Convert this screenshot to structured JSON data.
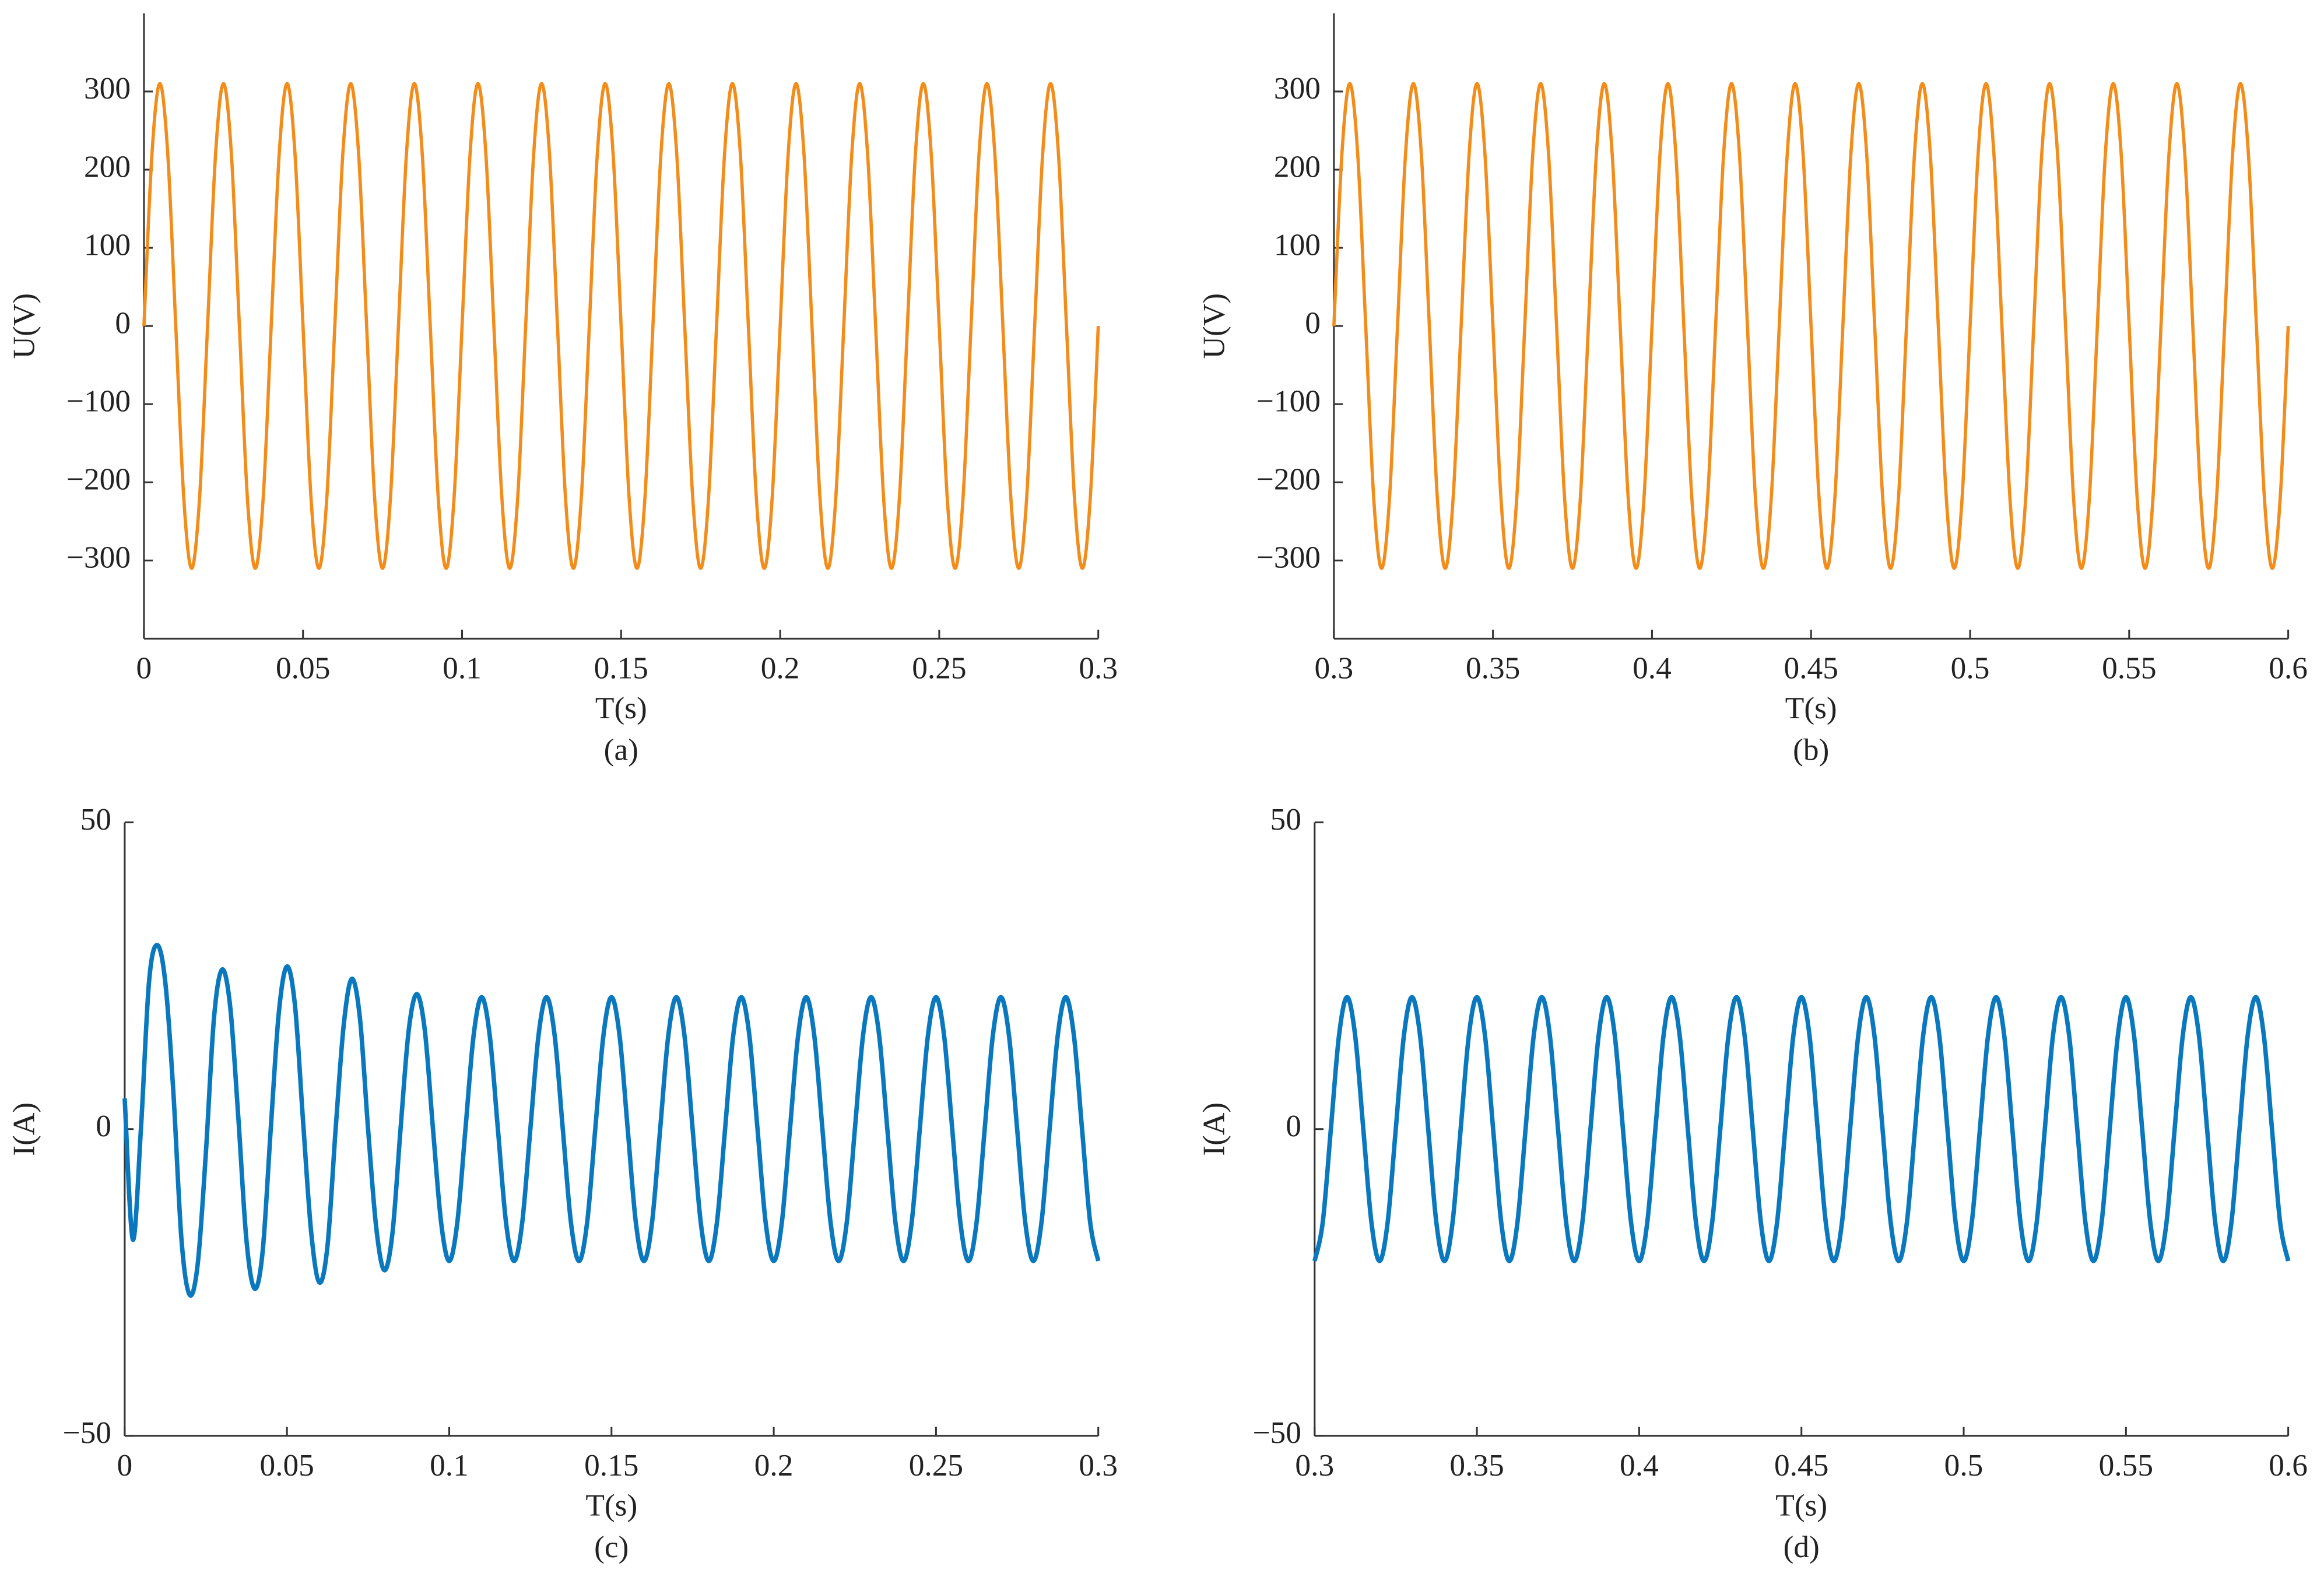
{
  "chart_data": [
    {
      "type": "line",
      "ylabel": "U(V)",
      "xlabel": "T(s)",
      "caption": "(a)",
      "color": "#f28c1a",
      "xlim": [
        0,
        0.3
      ],
      "xticks": [
        0,
        0.05,
        0.1,
        0.15,
        0.2,
        0.25,
        0.3
      ],
      "ylim": [
        -400,
        400
      ],
      "yticks": [
        {
          "value": -300,
          "label": "−300"
        },
        {
          "value": -200,
          "label": "−200"
        },
        {
          "value": -100,
          "label": "−100"
        },
        0,
        100,
        200,
        300
      ],
      "x": [
        0,
        0.0025,
        0.005,
        0.0075,
        0.01,
        0.0125,
        0.015,
        0.0175,
        0.02,
        0.0225,
        0.025,
        0.0275,
        0.03,
        0.0325,
        0.035,
        0.0375,
        0.04,
        0.0425,
        0.045,
        0.0475,
        0.05,
        0.0525,
        0.055,
        0.0575,
        0.06,
        0.0625,
        0.065,
        0.0675,
        0.07,
        0.0725,
        0.075,
        0.0775,
        0.08,
        0.0825,
        0.085,
        0.0875,
        0.09,
        0.0925,
        0.095,
        0.0975,
        0.1,
        0.1025,
        0.105,
        0.1075,
        0.11,
        0.1125,
        0.115,
        0.1175,
        0.12,
        0.1225,
        0.125,
        0.1275,
        0.13,
        0.1325,
        0.135,
        0.1375,
        0.14,
        0.1425,
        0.145,
        0.1475,
        0.15,
        0.1525,
        0.155,
        0.1575,
        0.16,
        0.1625,
        0.165,
        0.1675,
        0.17,
        0.1725,
        0.175,
        0.1775,
        0.18,
        0.1825,
        0.185,
        0.1875,
        0.19,
        0.1925,
        0.195,
        0.1975,
        0.2,
        0.2025,
        0.205,
        0.2075,
        0.21,
        0.2125,
        0.215,
        0.2175,
        0.22,
        0.2225,
        0.225,
        0.2275,
        0.23,
        0.2325,
        0.235,
        0.2375,
        0.24,
        0.2425,
        0.245,
        0.2475,
        0.25,
        0.2525,
        0.255,
        0.2575,
        0.26,
        0.2625,
        0.265,
        0.2675,
        0.27,
        0.2725,
        0.275,
        0.2775,
        0.28,
        0.2825,
        0.285,
        0.2875,
        0.29,
        0.2925,
        0.295,
        0.2975,
        0.3
      ],
      "values": [
        0,
        219,
        310,
        219,
        0,
        -219,
        -310,
        -219,
        0,
        219,
        310,
        219,
        0,
        -219,
        -310,
        -219,
        0,
        219,
        310,
        219,
        0,
        -219,
        -310,
        -219,
        0,
        219,
        310,
        219,
        0,
        -219,
        -310,
        -219,
        0,
        219,
        310,
        219,
        0,
        -219,
        -310,
        -219,
        0,
        219,
        310,
        219,
        0,
        -219,
        -310,
        -219,
        0,
        219,
        310,
        219,
        0,
        -219,
        -310,
        -219,
        0,
        219,
        310,
        219,
        0,
        -219,
        -310,
        -219,
        0,
        219,
        310,
        219,
        0,
        -219,
        -310,
        -219,
        0,
        219,
        310,
        219,
        0,
        -219,
        -310,
        -219,
        0,
        219,
        310,
        219,
        0,
        -219,
        -310,
        -219,
        0,
        219,
        310,
        219,
        0,
        -219,
        -310,
        -219,
        0,
        219,
        310,
        219,
        0,
        -219,
        -310,
        -219,
        0,
        219,
        310,
        219,
        0,
        -219,
        -310,
        -219,
        0,
        219,
        310,
        219,
        0,
        -219,
        -310,
        -219,
        0
      ]
    },
    {
      "type": "line",
      "ylabel": "U(V)",
      "xlabel": "T(s)",
      "caption": "(b)",
      "color": "#f28c1a",
      "xlim": [
        0.3,
        0.6
      ],
      "xticks": [
        0.3,
        0.35,
        0.4,
        0.45,
        0.5,
        0.55,
        0.6
      ],
      "ylim": [
        -400,
        400
      ],
      "yticks": [
        {
          "value": -300,
          "label": "−300"
        },
        {
          "value": -200,
          "label": "−200"
        },
        {
          "value": -100,
          "label": "−100"
        },
        0,
        100,
        200,
        300
      ],
      "x": [
        0.3,
        0.3025,
        0.305,
        0.3075,
        0.31,
        0.3125,
        0.315,
        0.3175,
        0.32,
        0.3225,
        0.325,
        0.3275,
        0.33,
        0.3325,
        0.335,
        0.3375,
        0.34,
        0.3425,
        0.345,
        0.3475,
        0.35,
        0.3525,
        0.355,
        0.3575,
        0.36,
        0.3625,
        0.365,
        0.3675,
        0.37,
        0.3725,
        0.375,
        0.3775,
        0.38,
        0.3825,
        0.385,
        0.3875,
        0.39,
        0.3925,
        0.395,
        0.3975,
        0.4,
        0.4025,
        0.405,
        0.4075,
        0.41,
        0.4125,
        0.415,
        0.4175,
        0.42,
        0.4225,
        0.425,
        0.4275,
        0.43,
        0.4325,
        0.435,
        0.4375,
        0.44,
        0.4425,
        0.445,
        0.4475,
        0.45,
        0.4525,
        0.455,
        0.4575,
        0.46,
        0.4625,
        0.465,
        0.4675,
        0.47,
        0.4725,
        0.475,
        0.4775,
        0.48,
        0.4825,
        0.485,
        0.4875,
        0.49,
        0.4925,
        0.495,
        0.4975,
        0.5,
        0.5025,
        0.505,
        0.5075,
        0.51,
        0.5125,
        0.515,
        0.5175,
        0.52,
        0.5225,
        0.525,
        0.5275,
        0.53,
        0.5325,
        0.535,
        0.5375,
        0.54,
        0.5425,
        0.545,
        0.5475,
        0.55,
        0.5525,
        0.555,
        0.5575,
        0.56,
        0.5625,
        0.565,
        0.5675,
        0.57,
        0.5725,
        0.575,
        0.5775,
        0.58,
        0.5825,
        0.585,
        0.5875,
        0.59,
        0.5925,
        0.595,
        0.5975,
        0.6
      ],
      "values": [
        0,
        219,
        310,
        219,
        0,
        -219,
        -310,
        -219,
        0,
        219,
        310,
        219,
        0,
        -219,
        -310,
        -219,
        0,
        219,
        310,
        219,
        0,
        -219,
        -310,
        -219,
        0,
        219,
        310,
        219,
        0,
        -219,
        -310,
        -219,
        0,
        219,
        310,
        219,
        0,
        -219,
        -310,
        -219,
        0,
        219,
        310,
        219,
        0,
        -219,
        -310,
        -219,
        0,
        219,
        310,
        219,
        0,
        -219,
        -310,
        -219,
        0,
        219,
        310,
        219,
        0,
        -219,
        -310,
        -219,
        0,
        219,
        310,
        219,
        0,
        -219,
        -310,
        -219,
        0,
        219,
        310,
        219,
        0,
        -219,
        -310,
        -219,
        0,
        219,
        310,
        219,
        0,
        -219,
        -310,
        -219,
        0,
        219,
        310,
        219,
        0,
        -219,
        -310,
        -219,
        0,
        219,
        310,
        219,
        0,
        -219,
        -310,
        -219,
        0,
        219,
        310,
        219,
        0,
        -219,
        -310,
        -219,
        0,
        219,
        310,
        219,
        0,
        -219,
        -310,
        -219,
        0
      ]
    },
    {
      "type": "line",
      "ylabel": "I(A)",
      "xlabel": "T(s)",
      "caption": "(c)",
      "color": "#0a78be",
      "xlim": [
        0,
        0.3
      ],
      "xticks": [
        0,
        0.05,
        0.1,
        0.15,
        0.2,
        0.25,
        0.3
      ],
      "ylim": [
        -50,
        50
      ],
      "yticks": [
        {
          "value": -50,
          "label": "−50"
        },
        0,
        50
      ],
      "x": [
        0,
        0.0025,
        0.005,
        0.0075,
        0.01,
        0.0125,
        0.015,
        0.0175,
        0.02,
        0.0225,
        0.025,
        0.0275,
        0.03,
        0.0325,
        0.035,
        0.0375,
        0.04,
        0.0425,
        0.045,
        0.0475,
        0.05,
        0.0525,
        0.055,
        0.0575,
        0.06,
        0.0625,
        0.065,
        0.0675,
        0.07,
        0.0725,
        0.075,
        0.0775,
        0.08,
        0.0825,
        0.085,
        0.0875,
        0.09,
        0.0925,
        0.095,
        0.0975,
        0.1,
        0.1025,
        0.105,
        0.1075,
        0.11,
        0.1125,
        0.115,
        0.1175,
        0.12,
        0.1225,
        0.125,
        0.1275,
        0.13,
        0.1325,
        0.135,
        0.1375,
        0.14,
        0.1425,
        0.145,
        0.1475,
        0.15,
        0.1525,
        0.155,
        0.1575,
        0.16,
        0.1625,
        0.165,
        0.1675,
        0.17,
        0.1725,
        0.175,
        0.1775,
        0.18,
        0.1825,
        0.185,
        0.1875,
        0.19,
        0.1925,
        0.195,
        0.1975,
        0.2,
        0.2025,
        0.205,
        0.2075,
        0.21,
        0.2125,
        0.215,
        0.2175,
        0.22,
        0.2225,
        0.225,
        0.2275,
        0.23,
        0.2325,
        0.235,
        0.2375,
        0.24,
        0.2425,
        0.245,
        0.2475,
        0.25,
        0.2525,
        0.255,
        0.2575,
        0.26,
        0.2625,
        0.265,
        0.2675,
        0.27,
        0.2725,
        0.275,
        0.2775,
        0.28,
        0.2825,
        0.285,
        0.2875,
        0.29,
        0.2925,
        0.295,
        0.2975,
        0.3
      ],
      "values": [
        5,
        -18,
        0,
        24,
        30,
        24,
        6,
        -18,
        -27,
        -22,
        -4,
        18,
        26,
        20,
        2,
        -18,
        -26,
        -20,
        0,
        19,
        26.5,
        20,
        1,
        -17,
        -25,
        -19,
        0,
        17,
        24.5,
        18,
        0,
        -16,
        -23,
        -17,
        0,
        16,
        22,
        16,
        0,
        -15.2,
        -21.5,
        -15.2,
        0,
        15.2,
        21.5,
        15.2,
        0,
        -15.2,
        -21.5,
        -15.2,
        0,
        15.2,
        21.5,
        15.2,
        0,
        -15.2,
        -21.5,
        -15.2,
        0,
        15.2,
        21.5,
        15.2,
        0,
        -15.2,
        -21.5,
        -15.2,
        0,
        15.2,
        21.5,
        15.2,
        0,
        -15.2,
        -21.5,
        -15.2,
        0,
        15.2,
        21.5,
        15.2,
        0,
        -15.2,
        -21.5,
        -15.2,
        0,
        15.2,
        21.5,
        15.2,
        0,
        -15.2,
        -21.5,
        -15.2,
        0,
        15.2,
        21.5,
        15.2,
        0,
        -15.2,
        -21.5,
        -15.2,
        0,
        15.2,
        21.5,
        15.2,
        0,
        -15.2,
        -21.5,
        -15.2,
        0,
        15.2,
        21.5,
        15.2,
        0,
        -15.2,
        -21.5,
        -15.2,
        0,
        15.2,
        21.5,
        15.2,
        0,
        -15.2,
        -21.5
      ]
    },
    {
      "type": "line",
      "ylabel": "I(A)",
      "xlabel": "T(s)",
      "caption": "(d)",
      "color": "#0a78be",
      "xlim": [
        0.3,
        0.6
      ],
      "xticks": [
        0.3,
        0.35,
        0.4,
        0.45,
        0.5,
        0.55,
        0.6
      ],
      "ylim": [
        -50,
        50
      ],
      "yticks": [
        {
          "value": -50,
          "label": "−50"
        },
        0,
        50
      ],
      "x": [
        0.3,
        0.3025,
        0.305,
        0.3075,
        0.31,
        0.3125,
        0.315,
        0.3175,
        0.32,
        0.3225,
        0.325,
        0.3275,
        0.33,
        0.3325,
        0.335,
        0.3375,
        0.34,
        0.3425,
        0.345,
        0.3475,
        0.35,
        0.3525,
        0.355,
        0.3575,
        0.36,
        0.3625,
        0.365,
        0.3675,
        0.37,
        0.3725,
        0.375,
        0.3775,
        0.38,
        0.3825,
        0.385,
        0.3875,
        0.39,
        0.3925,
        0.395,
        0.3975,
        0.4,
        0.4025,
        0.405,
        0.4075,
        0.41,
        0.4125,
        0.415,
        0.4175,
        0.42,
        0.4225,
        0.425,
        0.4275,
        0.43,
        0.4325,
        0.435,
        0.4375,
        0.44,
        0.4425,
        0.445,
        0.4475,
        0.45,
        0.4525,
        0.455,
        0.4575,
        0.46,
        0.4625,
        0.465,
        0.4675,
        0.47,
        0.4725,
        0.475,
        0.4775,
        0.48,
        0.4825,
        0.485,
        0.4875,
        0.49,
        0.4925,
        0.495,
        0.4975,
        0.5,
        0.5025,
        0.505,
        0.5075,
        0.51,
        0.5125,
        0.515,
        0.5175,
        0.52,
        0.5225,
        0.525,
        0.5275,
        0.53,
        0.5325,
        0.535,
        0.5375,
        0.54,
        0.5425,
        0.545,
        0.5475,
        0.55,
        0.5525,
        0.555,
        0.5575,
        0.56,
        0.5625,
        0.565,
        0.5675,
        0.57,
        0.5725,
        0.575,
        0.5775,
        0.58,
        0.5825,
        0.585,
        0.5875,
        0.59,
        0.5925,
        0.595,
        0.5975,
        0.6
      ],
      "values": [
        -21.5,
        -15.2,
        0,
        15.2,
        21.5,
        15.2,
        0,
        -15.2,
        -21.5,
        -15.2,
        0,
        15.2,
        21.5,
        15.2,
        0,
        -15.2,
        -21.5,
        -15.2,
        0,
        15.2,
        21.5,
        15.2,
        0,
        -15.2,
        -21.5,
        -15.2,
        0,
        15.2,
        21.5,
        15.2,
        0,
        -15.2,
        -21.5,
        -15.2,
        0,
        15.2,
        21.5,
        15.2,
        0,
        -15.2,
        -21.5,
        -15.2,
        0,
        15.2,
        21.5,
        15.2,
        0,
        -15.2,
        -21.5,
        -15.2,
        0,
        15.2,
        21.5,
        15.2,
        0,
        -15.2,
        -21.5,
        -15.2,
        0,
        15.2,
        21.5,
        15.2,
        0,
        -15.2,
        -21.5,
        -15.2,
        0,
        15.2,
        21.5,
        15.2,
        0,
        -15.2,
        -21.5,
        -15.2,
        0,
        15.2,
        21.5,
        15.2,
        0,
        -15.2,
        -21.5,
        -15.2,
        0,
        15.2,
        21.5,
        15.2,
        0,
        -15.2,
        -21.5,
        -15.2,
        0,
        15.2,
        21.5,
        15.2,
        0,
        -15.2,
        -21.5,
        -15.2,
        0,
        15.2,
        21.5,
        15.2,
        0,
        -15.2,
        -21.5,
        -15.2,
        0,
        15.2,
        21.5,
        15.2,
        0,
        -15.2,
        -21.5,
        -15.2,
        0,
        15.2,
        21.5,
        15.2,
        0,
        -15.2,
        -21.5
      ]
    }
  ]
}
